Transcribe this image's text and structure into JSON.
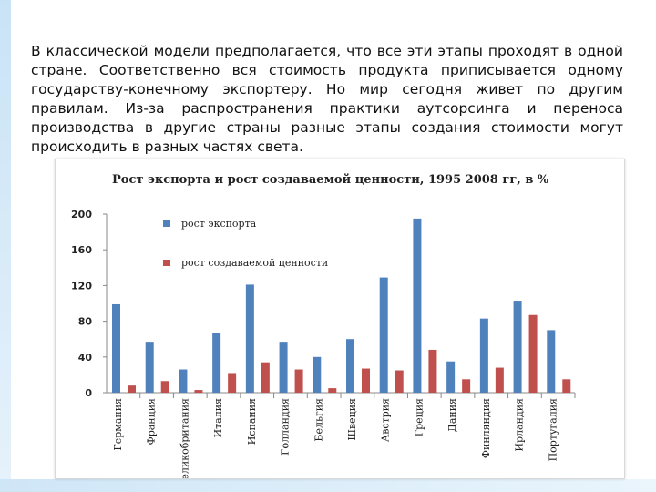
{
  "intro_text": "В классической модели предполагается, что все эти этапы проходят в одной стране. Соответственно вся стоимость продукта приписывается одному государству-конечному экспортеру. Но мир сегодня живет по другим правилам. Из-за распространения практики аутсорсинга и переноса производства в другие страны разные этапы создания стоимости могут происходить в разных частях света.",
  "colors": {
    "export": "#4f81bd",
    "value_added": "#c0504d"
  },
  "chart_data": {
    "type": "bar",
    "title": "Рост экспорта и рост создаваемой ценности, 1995 2008 гг, в %",
    "categories": [
      "Германия",
      "Франция",
      "Великобритания",
      "Италия",
      "Испания",
      "Голландия",
      "Бельгия",
      "Швеция",
      "Австрия",
      "Греция",
      "Дания",
      "Финляндия",
      "Ирландия",
      "Португалия"
    ],
    "series": [
      {
        "name": "рост экспорта",
        "values": [
          99,
          57,
          26,
          67,
          121,
          57,
          40,
          60,
          129,
          195,
          35,
          83,
          103,
          70
        ]
      },
      {
        "name": "рост создаваемой ценности",
        "values": [
          8,
          13,
          3,
          22,
          34,
          26,
          5,
          27,
          25,
          48,
          15,
          28,
          87,
          15
        ]
      }
    ],
    "yticks": [
      "0",
      "40",
      "80",
      "120",
      "160",
      "200"
    ],
    "ylim": [
      0,
      200
    ],
    "legend_position": "top-left"
  }
}
